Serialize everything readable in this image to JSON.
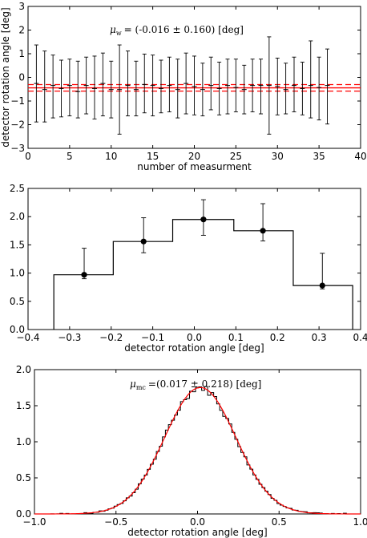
{
  "colors": {
    "mean_line": "#ff0000",
    "data": "#000000",
    "gaussian": "#ff0000"
  },
  "chart_data": [
    {
      "type": "scatter",
      "xlabel": "number of measurment",
      "ylabel": "detector rotation angle [deg]",
      "xlim": [
        0,
        40
      ],
      "ylim": [
        -3,
        4
      ],
      "xticks": [
        "0",
        "5",
        "10",
        "15",
        "20",
        "25",
        "30",
        "35",
        "40"
      ],
      "yticks": [
        "−3",
        "−2",
        "−1",
        "0",
        "1",
        "2",
        "3"
      ],
      "annotation": {
        "symbol": "μ",
        "subscript": "w",
        "text": "= (-0.016 ± 0.160) [deg]"
      },
      "mean": -0.016,
      "mean_error": 0.16,
      "x": [
        1,
        2,
        3,
        4,
        5,
        6,
        7,
        8,
        9,
        10,
        11,
        12,
        13,
        14,
        15,
        16,
        17,
        18,
        19,
        20,
        21,
        22,
        23,
        24,
        25,
        26,
        27,
        28,
        29,
        30,
        31,
        32,
        33,
        34,
        35,
        36
      ],
      "y": [
        0.2,
        -0.1,
        0.1,
        -0.05,
        0.1,
        -0.2,
        0.1,
        -0.05,
        0.2,
        -0.1,
        -0.1,
        0.1,
        -0.1,
        0.15,
        0.1,
        -0.05,
        0.1,
        -0.1,
        0.2,
        0.05,
        -0.1,
        0.1,
        -0.05,
        0.1,
        0.0,
        -0.1,
        0.1,
        0.1,
        0.1,
        0.05,
        -0.1,
        0.1,
        -0.05,
        0.1,
        0.0,
        0.1
      ],
      "err_low": [
        1.9,
        1.6,
        1.6,
        1.4,
        1.5,
        1.3,
        1.4,
        1.5,
        1.6,
        1.4,
        2.2,
        1.5,
        1.3,
        1.4,
        1.5,
        1.2,
        1.3,
        1.4,
        1.5,
        1.4,
        1.3,
        1.2,
        1.3,
        1.4,
        1.2,
        1.2,
        1.3,
        1.4,
        2.4,
        1.4,
        1.2,
        1.3,
        1.3,
        1.6,
        1.6,
        1.9
      ],
      "err_high": [
        1.9,
        1.9,
        1.5,
        1.4,
        1.3,
        1.5,
        1.4,
        1.6,
        1.5,
        1.4,
        2.2,
        1.7,
        1.4,
        1.5,
        1.5,
        1.4,
        1.4,
        1.5,
        1.5,
        1.5,
        1.3,
        1.4,
        1.3,
        1.3,
        1.4,
        1.2,
        1.3,
        1.3,
        2.4,
        1.4,
        1.3,
        1.4,
        1.3,
        2.2,
        1.5,
        1.8
      ]
    },
    {
      "type": "bar",
      "xlabel": "detector rotation angle [deg]",
      "ylabel": "",
      "xlim": [
        -0.4,
        0.4
      ],
      "ylim": [
        0.0,
        2.5
      ],
      "xticks": [
        "−0.4",
        "−0.3",
        "−0.2",
        "−0.1",
        "0.0",
        "0.1",
        "0.2",
        "0.3",
        "0.4"
      ],
      "yticks": [
        "0.0",
        "0.5",
        "1.0",
        "1.5",
        "2.0",
        "2.5"
      ],
      "bin_edges": [
        -0.338,
        -0.195,
        -0.052,
        0.095,
        0.238,
        0.381
      ],
      "values": [
        0.97,
        1.56,
        1.95,
        1.75,
        0.78
      ],
      "points_x": [
        -0.265,
        -0.122,
        0.022,
        0.165,
        0.308
      ],
      "err_low": [
        0.07,
        0.2,
        0.28,
        0.18,
        0.06
      ],
      "err_high": [
        0.47,
        0.42,
        0.35,
        0.48,
        0.57
      ]
    },
    {
      "type": "area",
      "xlabel": "detector rotation angle [deg]",
      "ylabel": "",
      "xlim": [
        -1.0,
        1.0
      ],
      "ylim": [
        0.0,
        2.1
      ],
      "xticks": [
        "−1.0",
        "−0.5",
        "0.0",
        "0.5",
        "1.0"
      ],
      "yticks": [
        "0.0",
        "0.5",
        "1.0",
        "1.5",
        "2.0"
      ],
      "annotation": {
        "symbol": "μ",
        "subscript": "mc",
        "text": "=(0.017 ± 0.218) [deg]"
      },
      "gaussian": {
        "mean": 0.017,
        "sigma": 0.218,
        "peak": 1.84
      }
    }
  ]
}
